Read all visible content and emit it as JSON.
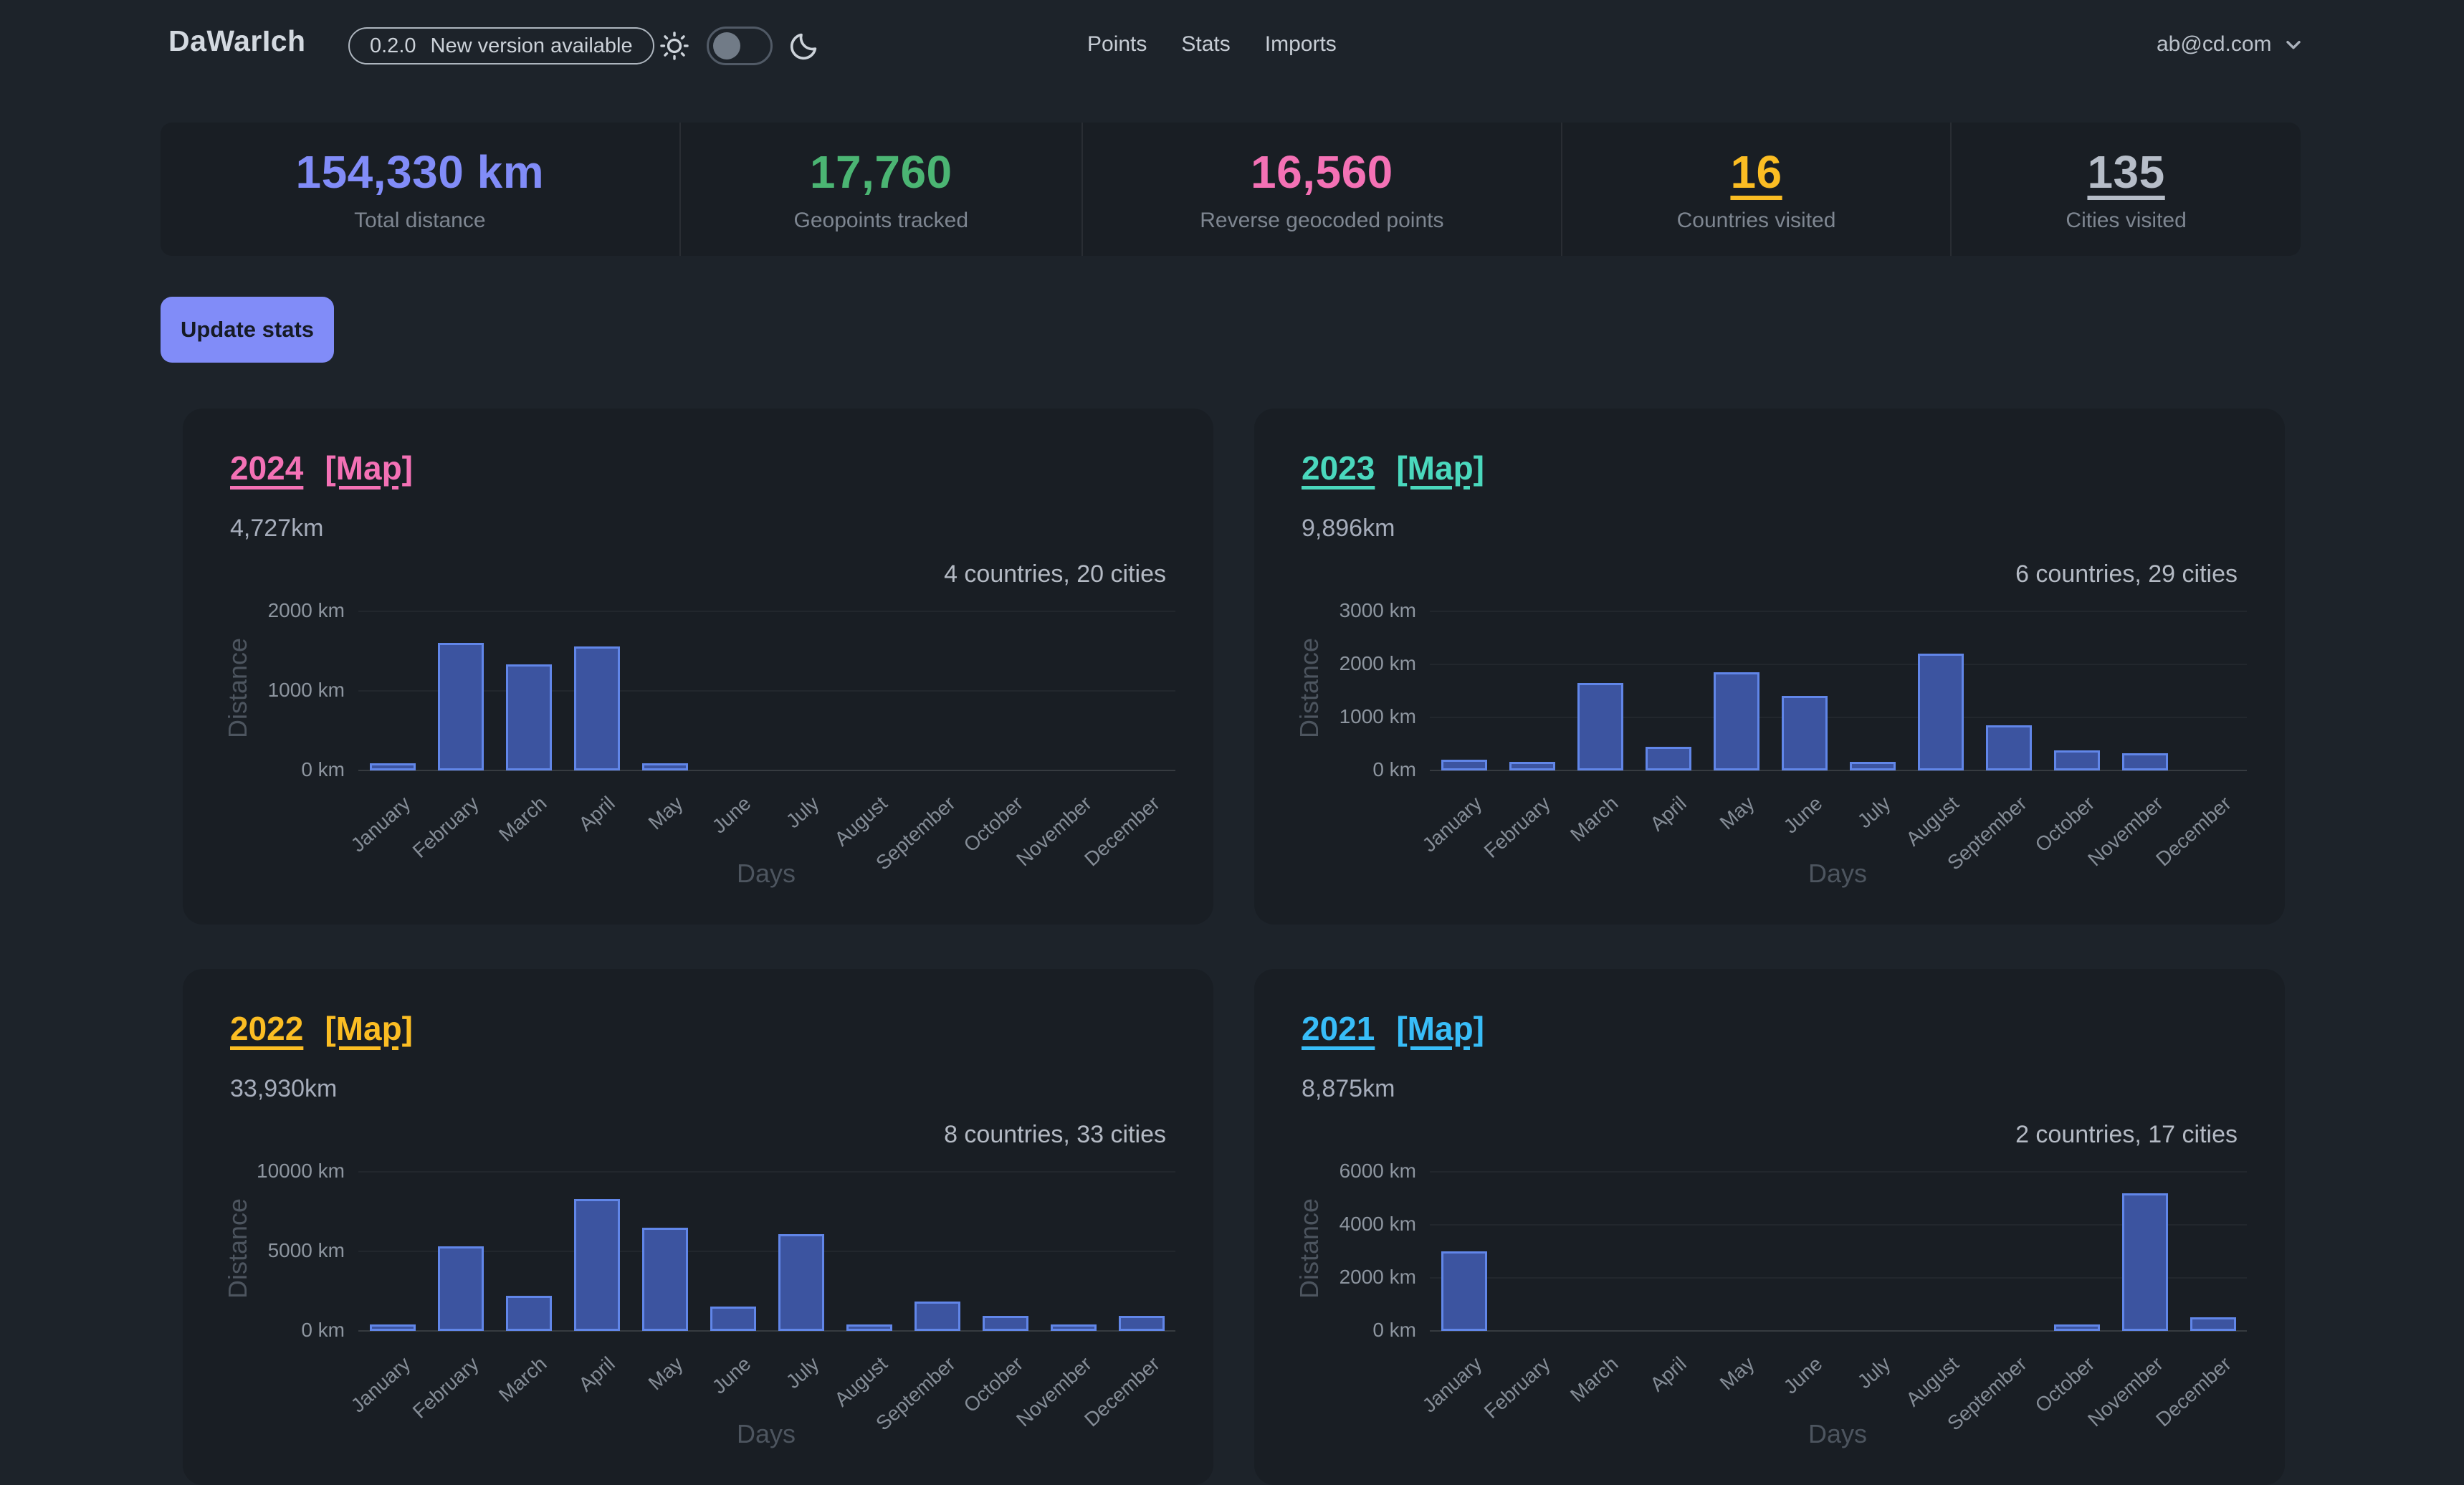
{
  "header": {
    "logo": "DaWarIch",
    "version": "0.2.0",
    "version_message": "New version available",
    "nav": [
      {
        "label": "Points"
      },
      {
        "label": "Stats"
      },
      {
        "label": "Imports"
      }
    ],
    "user_email": "ab@cd.com"
  },
  "stats": [
    {
      "value": "154,330 km",
      "label": "Total distance",
      "color": "#818cf8",
      "underline": false,
      "link": false
    },
    {
      "value": "17,760",
      "label": "Geopoints tracked",
      "color": "#4bb573",
      "underline": false,
      "link": false
    },
    {
      "value": "16,560",
      "label": "Reverse geocoded points",
      "color": "#f471b5",
      "underline": false,
      "link": false
    },
    {
      "value": "16",
      "label": "Countries visited",
      "color": "#fbbd23",
      "underline": true,
      "link": true
    },
    {
      "value": "135",
      "label": "Cities visited",
      "color": "#b6bdc8",
      "underline": true,
      "link": true
    }
  ],
  "actions": {
    "update_stats": "Update stats"
  },
  "chart_data": [
    {
      "type": "bar",
      "year": "2024",
      "map_label": "[Map]",
      "accent": "#f471b5",
      "total": "4,727km",
      "summary": "4 countries, 20 cities",
      "categories": [
        "January",
        "February",
        "March",
        "April",
        "May",
        "June",
        "July",
        "August",
        "September",
        "October",
        "November",
        "December"
      ],
      "values": [
        90,
        1600,
        1330,
        1560,
        90,
        0,
        0,
        0,
        0,
        0,
        0,
        0
      ],
      "ylabel": "Distance",
      "xlabel": "Days",
      "ylim": [
        0,
        2000
      ],
      "yticks": [
        0,
        1000,
        2000
      ],
      "ytick_labels": [
        "0 km",
        "1000 km",
        "2000 km"
      ],
      "bar_fill": "#3c54a0",
      "bar_border": "#6186e8"
    },
    {
      "type": "bar",
      "year": "2023",
      "map_label": "[Map]",
      "accent": "#4ad8bd",
      "total": "9,896km",
      "summary": "6 countries, 29 cities",
      "categories": [
        "January",
        "February",
        "March",
        "April",
        "May",
        "June",
        "July",
        "August",
        "September",
        "October",
        "November",
        "December"
      ],
      "values": [
        200,
        160,
        1650,
        450,
        1850,
        1400,
        160,
        2200,
        850,
        380,
        320,
        0
      ],
      "ylabel": "Distance",
      "xlabel": "Days",
      "ylim": [
        0,
        3000
      ],
      "yticks": [
        0,
        1000,
        2000,
        3000
      ],
      "ytick_labels": [
        "0 km",
        "1000 km",
        "2000 km",
        "3000 km"
      ],
      "bar_fill": "#3c54a0",
      "bar_border": "#6186e8"
    },
    {
      "type": "bar",
      "year": "2022",
      "map_label": "[Map]",
      "accent": "#fbbd23",
      "total": "33,930km",
      "summary": "8 countries, 33 cities",
      "categories": [
        "January",
        "February",
        "March",
        "April",
        "May",
        "June",
        "July",
        "August",
        "September",
        "October",
        "November",
        "December"
      ],
      "values": [
        250,
        5300,
        2200,
        8300,
        6500,
        1550,
        6100,
        250,
        1850,
        930,
        400,
        950
      ],
      "ylabel": "Distance",
      "xlabel": "Days",
      "ylim": [
        0,
        10000
      ],
      "yticks": [
        0,
        5000,
        10000
      ],
      "ytick_labels": [
        "0 km",
        "5000 km",
        "10000 km"
      ],
      "bar_fill": "#3c54a0",
      "bar_border": "#6186e8"
    },
    {
      "type": "bar",
      "year": "2021",
      "map_label": "[Map]",
      "accent": "#38bdf8",
      "total": "8,875km",
      "summary": "2 countries, 17 cities",
      "categories": [
        "January",
        "February",
        "March",
        "April",
        "May",
        "June",
        "July",
        "August",
        "September",
        "October",
        "November",
        "December"
      ],
      "values": [
        3000,
        0,
        0,
        0,
        0,
        0,
        0,
        0,
        0,
        150,
        5200,
        500
      ],
      "ylabel": "Distance",
      "xlabel": "Days",
      "ylim": [
        0,
        6000
      ],
      "yticks": [
        0,
        2000,
        4000,
        6000
      ],
      "ytick_labels": [
        "0 km",
        "2000 km",
        "4000 km",
        "6000 km"
      ],
      "bar_fill": "#3c54a0",
      "bar_border": "#6186e8"
    }
  ]
}
